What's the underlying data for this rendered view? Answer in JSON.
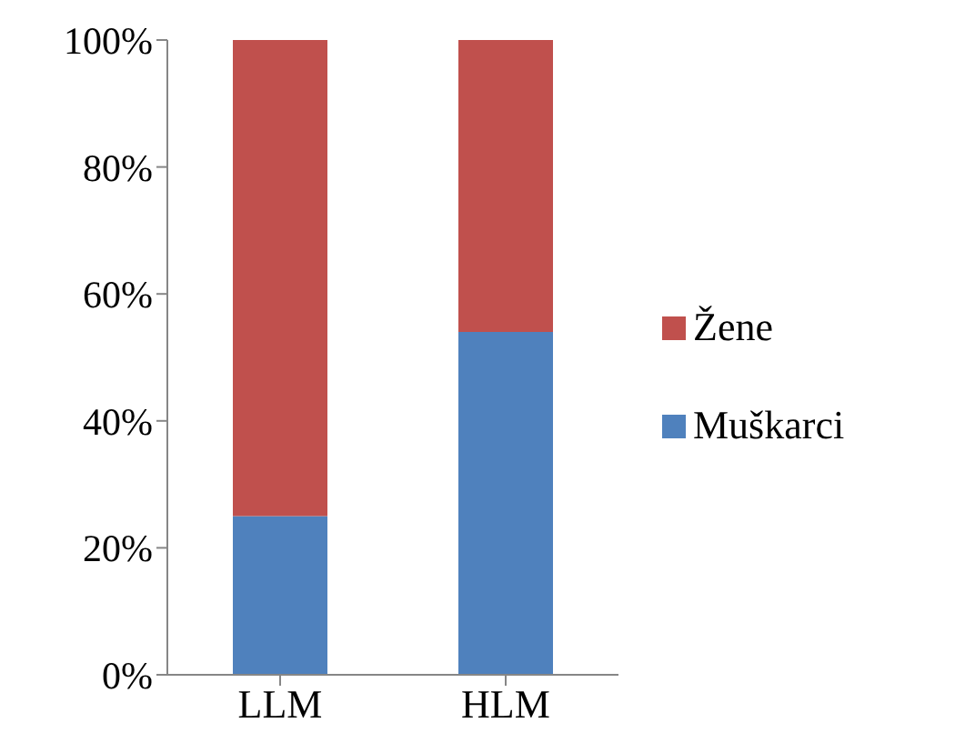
{
  "chart_data": {
    "type": "bar",
    "stacked": true,
    "categories": [
      "LLM",
      "HLM"
    ],
    "series": [
      {
        "name": "Muškarci",
        "color": "#4f81bd",
        "values": [
          25,
          54
        ]
      },
      {
        "name": "Žene",
        "color": "#c0504d",
        "values": [
          75,
          46
        ]
      }
    ],
    "ylim": [
      0,
      100
    ],
    "yticks": [
      {
        "value": 0,
        "label": "0%"
      },
      {
        "value": 20,
        "label": "20%"
      },
      {
        "value": 40,
        "label": "40%"
      },
      {
        "value": 60,
        "label": "60%"
      },
      {
        "value": 80,
        "label": "80%"
      },
      {
        "value": 100,
        "label": "100%"
      }
    ],
    "legend": "right"
  }
}
